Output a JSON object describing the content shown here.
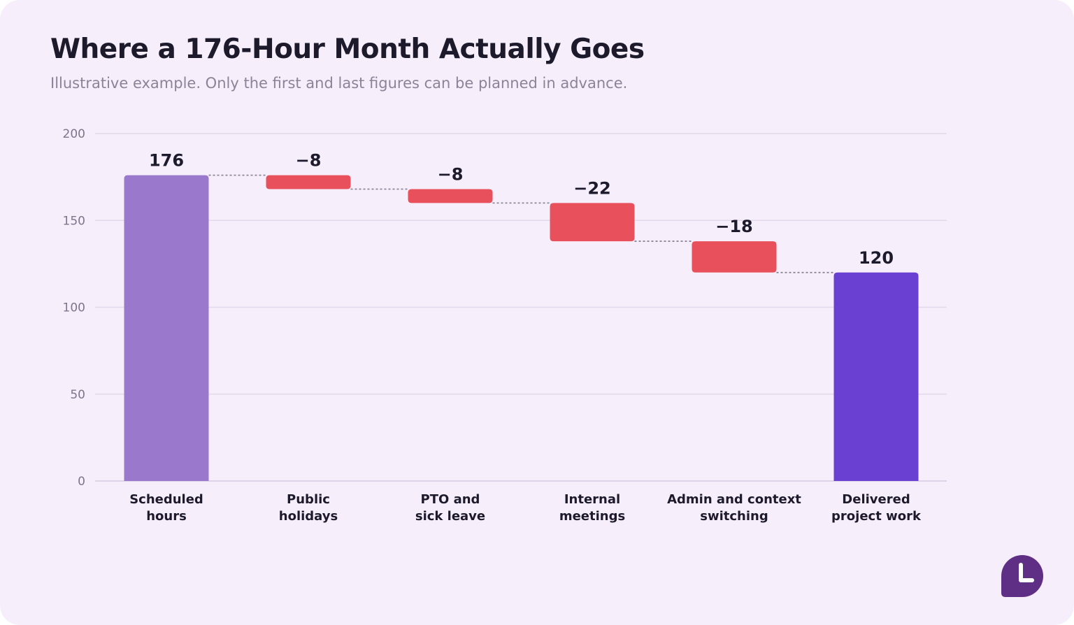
{
  "title": "Where a 176-Hour Month Actually Goes",
  "subtitle": "Illustrative example. Only the first and last figures can be planned in advance.",
  "colors": {
    "total_start": "#9a78cc",
    "decrease": "#e8505b",
    "total_end": "#6a40d3",
    "grid": "#e2d9ea",
    "connector": "#8c8796",
    "logo": "#5f2f86"
  },
  "logo_icon": "clock-hand-icon",
  "chart_data": {
    "type": "bar",
    "subtype": "waterfall",
    "categories": [
      [
        "Scheduled",
        "hours"
      ],
      [
        "Public",
        "holidays"
      ],
      [
        "PTO and",
        "sick leave"
      ],
      [
        "Internal",
        "meetings"
      ],
      [
        "Admin and context",
        "switching"
      ],
      [
        "Delivered",
        "project work"
      ]
    ],
    "values": [
      176,
      -8,
      -8,
      -22,
      -18,
      120
    ],
    "kinds": [
      "total",
      "decrease",
      "decrease",
      "decrease",
      "decrease",
      "total"
    ],
    "data_labels": [
      "176",
      "−8",
      "−8",
      "−22",
      "−18",
      "120"
    ],
    "ylim": [
      0,
      200
    ],
    "yticks": [
      0,
      50,
      100,
      150,
      200
    ],
    "grid": true,
    "connectors": true,
    "xlabel": "",
    "ylabel": ""
  }
}
